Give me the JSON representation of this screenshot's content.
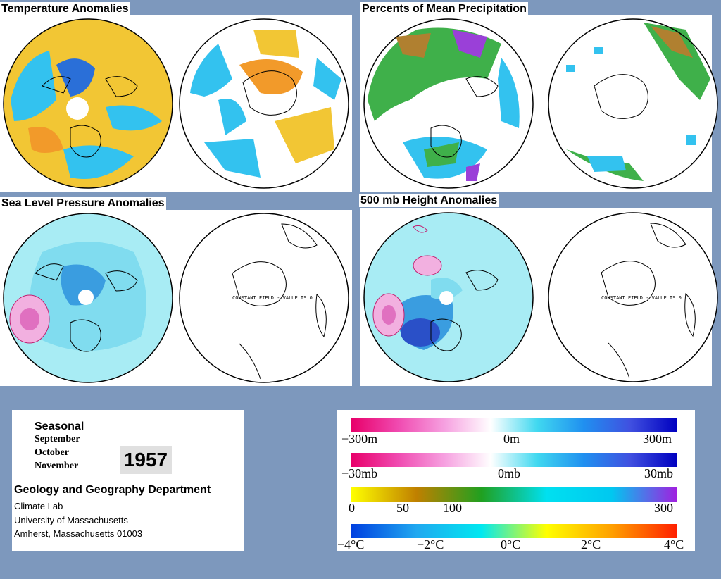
{
  "panels": {
    "temperature": {
      "title": "Temperature Anomalies"
    },
    "precipitation": {
      "title": "Percents of Mean Precipitation"
    },
    "slp": {
      "title": "Sea Level Pressure Anomalies",
      "constant_field_text": "CONSTANT FIELD - VALUE IS 0"
    },
    "height500": {
      "title": "500 mb Height Anomalies",
      "constant_field_text": "CONSTANT FIELD - VALUE IS 0"
    }
  },
  "info": {
    "season_label": "Seasonal",
    "months": [
      "September",
      "October",
      "November"
    ],
    "year": "1957",
    "department": "Geology and Geography Department",
    "address_lines": [
      "Climate Lab",
      "University of Massachusetts",
      "Amherst, Massachusetts 01003"
    ]
  },
  "scales": {
    "height": {
      "min_label": "−300m",
      "mid_label": "0m",
      "max_label": "300m",
      "gradient": [
        "#e8006a",
        "#f04ab0",
        "#f6a0e0",
        "#ffffff",
        "#40d8f0",
        "#2090f0",
        "#4050e0",
        "#0000c0"
      ]
    },
    "pressure": {
      "min_label": "−30mb",
      "mid_label": "0mb",
      "max_label": "30mb",
      "gradient": [
        "#e8006a",
        "#f04ab0",
        "#f6a0e0",
        "#ffffff",
        "#40d8f0",
        "#2090f0",
        "#4050e0",
        "#0000c0"
      ]
    },
    "precip": {
      "labels": [
        "0",
        "50",
        "100",
        "300"
      ],
      "gradient": [
        "#ffff00",
        "#c08000",
        "#20a020",
        "#00e0f0",
        "#00c8f0",
        "#a020e0"
      ]
    },
    "temperature": {
      "labels": [
        "−4°C",
        "−2°C",
        "0°C",
        "2°C",
        "4°C"
      ],
      "gradient": [
        "#0040e0",
        "#20a8f0",
        "#00e8f0",
        "#ffff00",
        "#ffa000",
        "#ff2000"
      ]
    }
  },
  "colors": {
    "background": "#7d98bd",
    "anom_warm": "#f0c020",
    "anom_cool": "#30c8f0",
    "land_outline": "#000000"
  }
}
